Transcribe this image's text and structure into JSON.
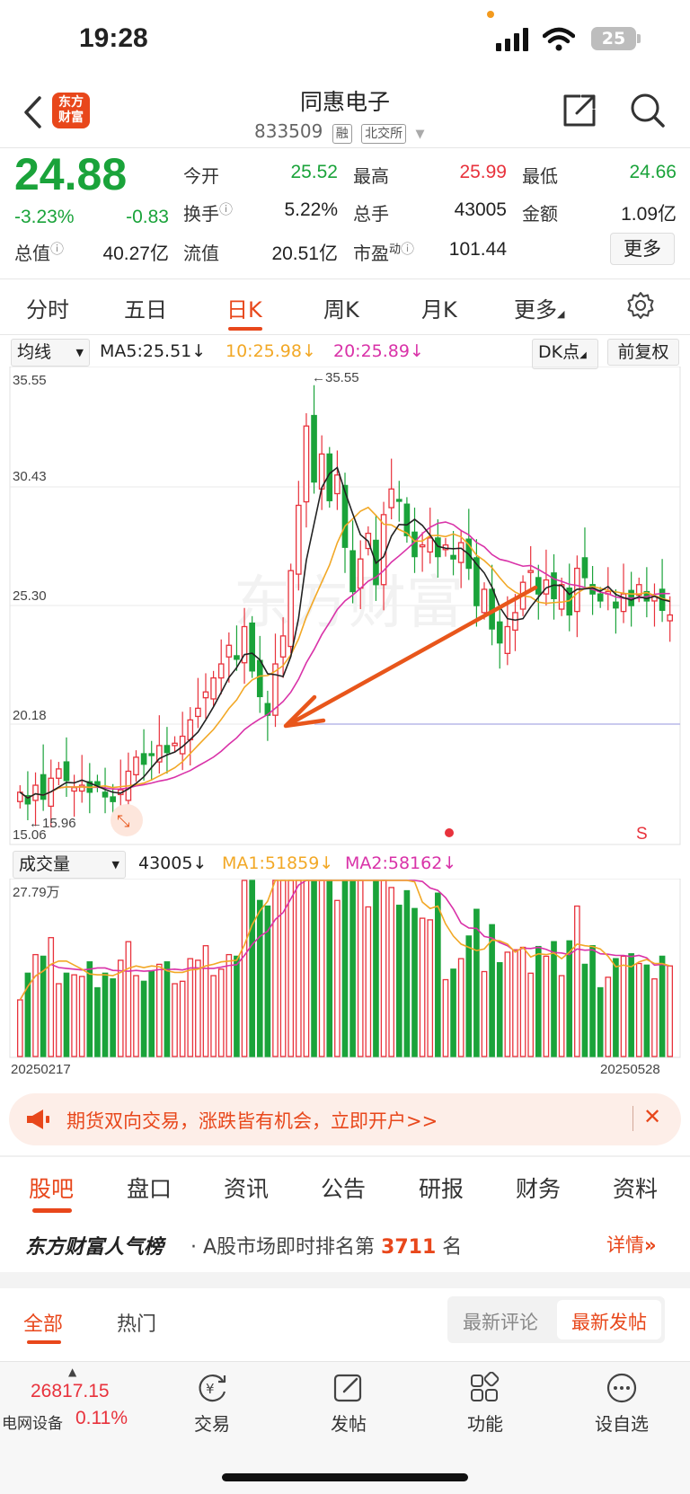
{
  "status_bar": {
    "time": "19:28",
    "battery": "25"
  },
  "header": {
    "title": "同惠电子",
    "code": "833509",
    "tag_margin": "融",
    "tag_exchange": "北交所",
    "logo_line1": "东方",
    "logo_line2": "财富"
  },
  "quote": {
    "price": "24.88",
    "change_pct": "-3.23%",
    "change": "-0.83",
    "open_label": "今开",
    "open": "25.52",
    "high_label": "最高",
    "high": "25.99",
    "low_label": "最低",
    "low": "24.66",
    "turnover_label": "换手",
    "turnover": "5.22%",
    "volume_label": "总手",
    "volume": "43005",
    "amount_label": "金额",
    "amount": "1.09亿",
    "mktcap_label": "总值",
    "mktcap": "40.27亿",
    "float_label": "流值",
    "float_cap": "20.51亿",
    "pe_label": "市盈",
    "pe_sup": "动",
    "pe": "101.44",
    "more_label": "更多"
  },
  "period_tabs": [
    "分时",
    "五日",
    "日K",
    "周K",
    "月K",
    "更多"
  ],
  "kline": {
    "ma_selector": "均线",
    "ma5": "MA5:25.51↓",
    "ma10": "10:25.98↓",
    "ma20": "20:25.89↓",
    "dk_label": "DK点",
    "adjust_label": "前复权",
    "y_labels": [
      "35.55",
      "30.43",
      "25.30",
      "20.18",
      "15.06"
    ],
    "high_marker": "←35.55",
    "low_marker": "←15.96",
    "s_marker": "S",
    "watermark": "东方财富",
    "colors": {
      "up": "#e8323c",
      "down": "#1aa33a",
      "ma5": "#222222",
      "ma10": "#f2a826",
      "ma20": "#d932a8",
      "arrow": "#e8561b"
    }
  },
  "volume": {
    "selector": "成交量",
    "current": "43005↓",
    "ma1": "MA1:51859↓",
    "ma2": "MA2:58162↓",
    "y_max": "27.79万",
    "start_date": "20250217",
    "end_date": "20250528"
  },
  "banner": {
    "text": "期货双向交易，涨跌皆有机会，立即开户>>"
  },
  "bottom_tabs": [
    "股吧",
    "盘口",
    "资讯",
    "公告",
    "研报",
    "财务",
    "资料"
  ],
  "ranking": {
    "brand": "东方财富人气榜",
    "text_prefix": "· A股市场即时排名第",
    "rank": "3711",
    "text_suffix": "名",
    "detail": "详情"
  },
  "forum": {
    "tab_all": "全部",
    "tab_hot": "热门",
    "sort_latest_comment": "最新评论",
    "sort_latest_post": "最新发帖"
  },
  "bottom_nav": {
    "index_value": "26817.15",
    "index_name": "电网设备",
    "index_change": "0.11%",
    "items": [
      "交易",
      "发帖",
      "功能",
      "设自选"
    ]
  }
}
